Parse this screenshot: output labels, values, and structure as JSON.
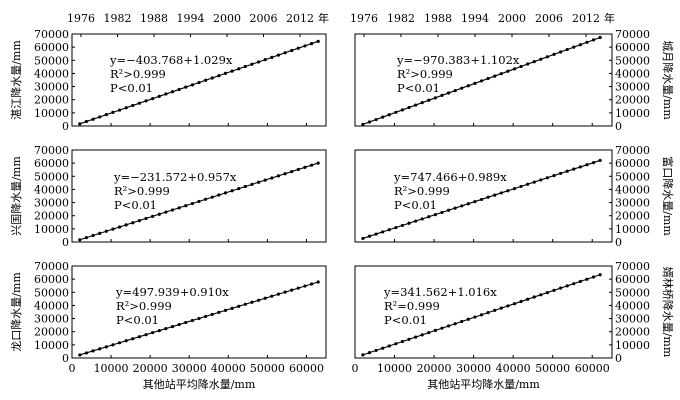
{
  "top_axis": {
    "ticks": [
      "1976",
      "1982",
      "1988",
      "1994",
      "2000",
      "2006",
      "2012"
    ],
    "unit": "年"
  },
  "chart_data": [
    {
      "type": "scatter",
      "ylabel": "湛江降水量/mm",
      "xlabel": "",
      "ylim": [
        0,
        70000
      ],
      "yticks": [
        0,
        10000,
        20000,
        30000,
        40000,
        50000,
        60000,
        70000
      ],
      "xlim": [
        0,
        65000
      ],
      "xticks": [],
      "x": [
        2000,
        63000
      ],
      "intercept": -403.768,
      "slope": 1.029,
      "points": 37,
      "annotations": [
        "y=−403.768+1.029x",
        "R²>0.999",
        "P<0.01"
      ]
    },
    {
      "type": "scatter",
      "ylabel": "城月降水量/mm",
      "xlabel": "",
      "ylim": [
        0,
        70000
      ],
      "yticks": [
        0,
        10000,
        20000,
        30000,
        40000,
        50000,
        60000,
        70000
      ],
      "xlim": [
        0,
        65000
      ],
      "xticks": [],
      "x": [
        2000,
        62000
      ],
      "intercept": -970.383,
      "slope": 1.102,
      "points": 37,
      "annotations": [
        "y=−970.383+1.102x",
        "R²>0.999",
        "P<0.01"
      ]
    },
    {
      "type": "scatter",
      "ylabel": "兴国降水量/mm",
      "xlabel": "",
      "ylim": [
        0,
        70000
      ],
      "yticks": [
        0,
        10000,
        20000,
        30000,
        40000,
        50000,
        60000,
        70000
      ],
      "xlim": [
        0,
        65000
      ],
      "xticks": [],
      "x": [
        2000,
        63000
      ],
      "intercept": -231.572,
      "slope": 0.957,
      "points": 37,
      "annotations": [
        "y=−231.572+0.957x",
        "R²>0.999",
        "P<0.01"
      ]
    },
    {
      "type": "scatter",
      "ylabel": "富口降水量/mm",
      "xlabel": "",
      "ylim": [
        0,
        70000
      ],
      "yticks": [
        0,
        10000,
        20000,
        30000,
        40000,
        50000,
        60000,
        70000
      ],
      "xlim": [
        0,
        65000
      ],
      "xticks": [],
      "x": [
        2000,
        62000
      ],
      "intercept": 747.466,
      "slope": 0.989,
      "points": 37,
      "annotations": [
        "y=747.466+0.989x",
        "R²>0.999",
        "P<0.01"
      ]
    },
    {
      "type": "scatter",
      "ylabel": "龙口降水量/mm",
      "xlabel": "其他站平均降水量/mm",
      "ylim": [
        0,
        70000
      ],
      "yticks": [
        0,
        10000,
        20000,
        30000,
        40000,
        50000,
        60000,
        70000
      ],
      "xlim": [
        0,
        65000
      ],
      "xticks": [
        0,
        10000,
        20000,
        30000,
        40000,
        50000,
        60000
      ],
      "x": [
        2000,
        63000
      ],
      "intercept": 497.939,
      "slope": 0.91,
      "points": 37,
      "annotations": [
        "y=497.939+0.910x",
        "R²>0.999",
        "P<0.01"
      ]
    },
    {
      "type": "scatter",
      "ylabel": "婿林桥降水量/mm",
      "xlabel": "其他站平均降水量/mm",
      "ylim": [
        0,
        70000
      ],
      "yticks": [
        0,
        10000,
        20000,
        30000,
        40000,
        50000,
        60000,
        70000
      ],
      "xlim": [
        0,
        65000
      ],
      "xticks": [
        0,
        10000,
        20000,
        30000,
        40000,
        50000,
        60000
      ],
      "x": [
        2000,
        62000
      ],
      "intercept": 341.562,
      "slope": 1.016,
      "points": 37,
      "annotations": [
        "y=341.562+1.016x",
        "R²=0.999",
        "P<0.01"
      ]
    }
  ]
}
